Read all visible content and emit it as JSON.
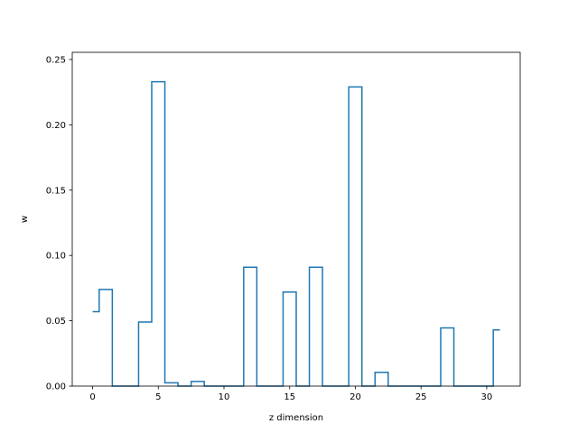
{
  "chart_data": {
    "type": "line",
    "drawstyle": "steps-mid",
    "title": "",
    "xlabel": "z dimension",
    "ylabel": "w",
    "xlim": [
      -1.55,
      32.55
    ],
    "ylim": [
      0,
      0.2555
    ],
    "x_ticks": [
      0,
      5,
      10,
      15,
      20,
      25,
      30
    ],
    "y_ticks": [
      0.0,
      0.05,
      0.1,
      0.15,
      0.2,
      0.25
    ],
    "y_tick_labels": [
      "0.00",
      "0.05",
      "0.10",
      "0.15",
      "0.20",
      "0.25"
    ],
    "grid": false,
    "series": [
      {
        "color": "#1f77b4",
        "x": [
          0,
          1,
          2,
          3,
          4,
          5,
          6,
          7,
          8,
          9,
          10,
          11,
          12,
          13,
          14,
          15,
          16,
          17,
          18,
          19,
          20,
          21,
          22,
          23,
          24,
          25,
          26,
          27,
          28,
          29,
          30,
          31
        ],
        "y": [
          0.057,
          0.074,
          0.0,
          0.0,
          0.049,
          0.233,
          0.0025,
          0.0,
          0.0035,
          0.0,
          0.0,
          0.0,
          0.091,
          0.0,
          0.0,
          0.072,
          0.0,
          0.091,
          0.0,
          0.0,
          0.229,
          0.0,
          0.0105,
          0.0,
          0.0,
          0.0,
          0.0,
          0.0445,
          0.0,
          0.0,
          0.0,
          0.043
        ]
      }
    ]
  }
}
